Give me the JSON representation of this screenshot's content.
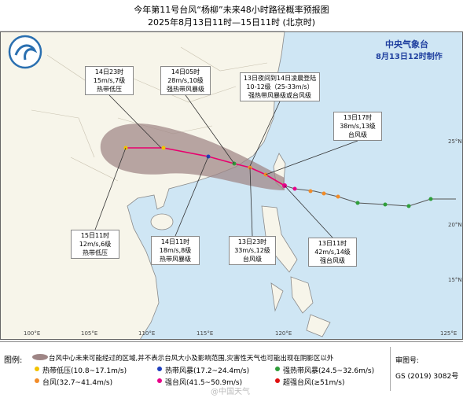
{
  "header": {
    "title": "今年第11号台风“杨柳”未来48小时路径概率预报图",
    "subtitle": "2025年8月13日11时—15日11时 (北京时)",
    "agency": "中央气象台",
    "issued": "8月13日12时制作"
  },
  "annotations": [
    {
      "lines": [
        "14日23时",
        "15m/s,7级",
        "热带低压"
      ]
    },
    {
      "lines": [
        "14日05时",
        "28m/s,10级",
        "强热带风暴级"
      ]
    },
    {
      "lines": [
        "13日夜间到14日凌晨登陆",
        "10-12级（25-33m/s）",
        "强热带风暴级或台风级"
      ]
    },
    {
      "lines": [
        "13日17时",
        "38m/s,13级",
        "台风级"
      ]
    },
    {
      "lines": [
        "15日11时",
        "12m/s,6级",
        "热带低压"
      ]
    },
    {
      "lines": [
        "14日11时",
        "18m/s,8级",
        "热带风暴级"
      ]
    },
    {
      "lines": [
        "13日23时",
        "33m/s,12级",
        "台风级"
      ]
    },
    {
      "lines": [
        "13日11时",
        "42m/s,14级",
        "强台风级"
      ]
    }
  ],
  "axes": {
    "longitudes": [
      "100°E",
      "105°E",
      "110°E",
      "115°E",
      "120°E",
      "125°E"
    ],
    "latitudes": [
      "25°N",
      "20°N",
      "15°N"
    ]
  },
  "legend": {
    "label": "图例:",
    "cone": "台风中心未来可能经过的区域,并不表示台风大小及影响范围,灾害性天气也可能出现在阴影区以外",
    "items": [
      {
        "label": "热带低压(10.8~17.1m/s)",
        "color": "#f2c200"
      },
      {
        "label": "热带风暴(17.2~24.4m/s)",
        "color": "#1f3fbf"
      },
      {
        "label": "强热带风暴(24.5~32.6m/s)",
        "color": "#2f9e3a"
      },
      {
        "label": "台风(32.7~41.4m/s)",
        "color": "#f28c28"
      },
      {
        "label": "强台风(41.5~50.9m/s)",
        "color": "#e8008a"
      },
      {
        "label": "超强台风(≥51m/s)",
        "color": "#e01010"
      }
    ]
  },
  "review": {
    "label": "审图号:",
    "number": "GS (2019) 3082号"
  },
  "watermark": "@中国天气"
}
